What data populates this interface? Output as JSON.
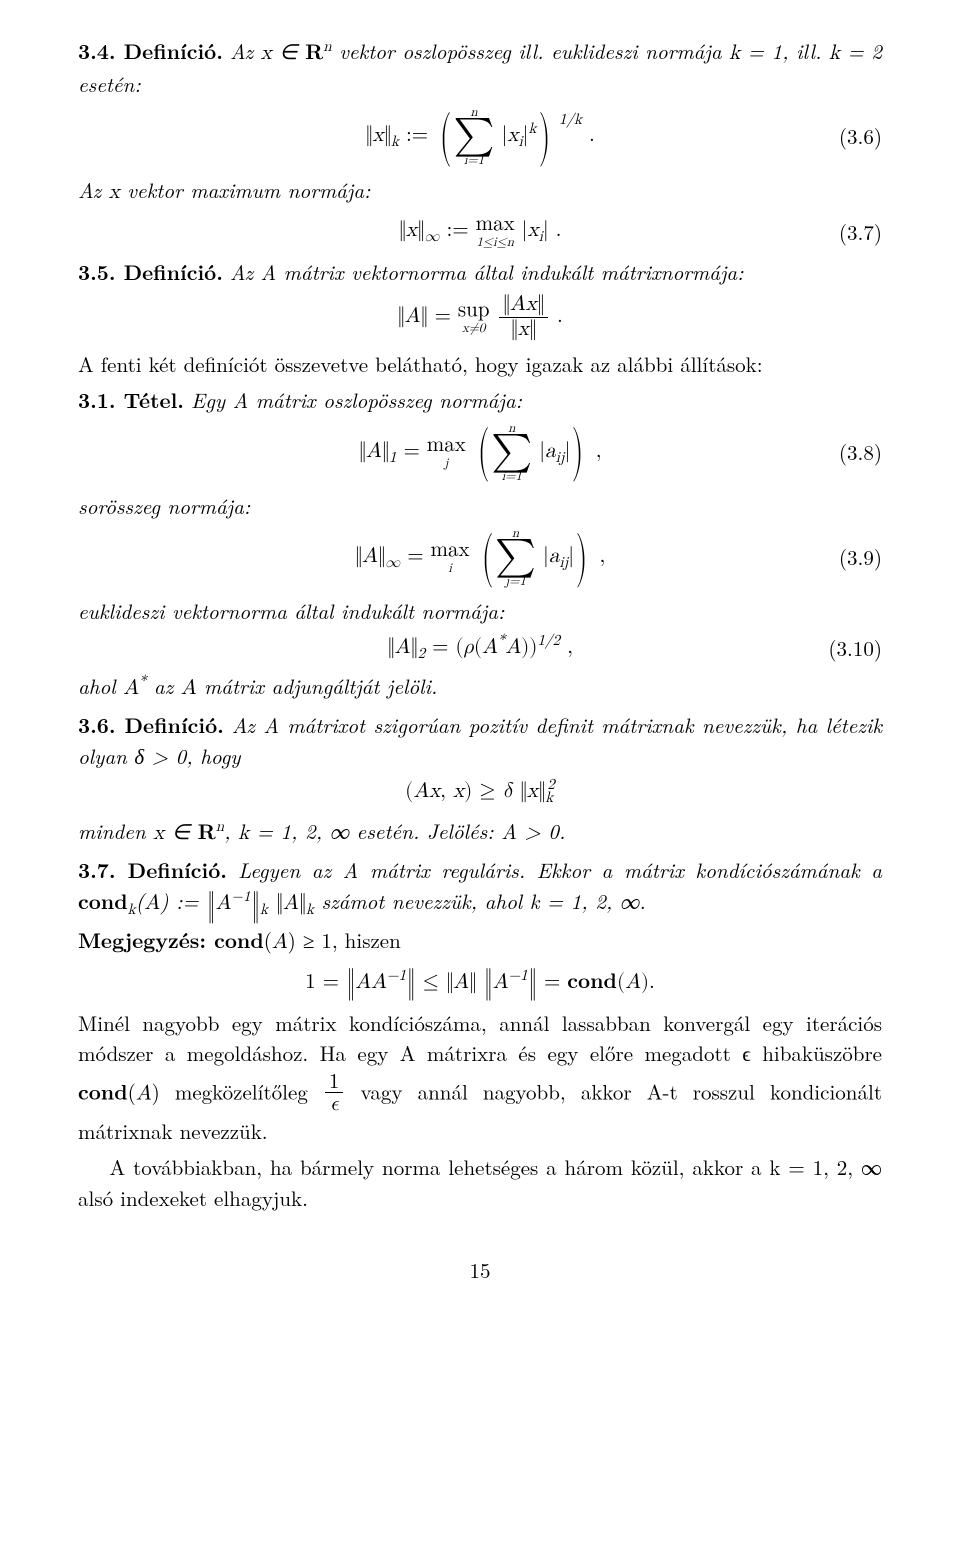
{
  "def34": {
    "heading": "3.4. Definíció.",
    "text_a": " Az ",
    "text_b": " vektor oszlopösszeg ill. euklideszi normája ",
    "text_c": ", ill. ",
    "text_d": " esetén:"
  },
  "eq36_num": "(3.6)",
  "maxnorm_line": "Az x vektor maximum normája:",
  "eq37_num": "(3.7)",
  "def35": {
    "heading": "3.5. Definíció.",
    "text": " Az A mátrix vektornorma által indukált mátrixnormája:"
  },
  "after_def35": "A fenti két definíciót összevetve belátható, hogy igazak az alábbi állítások:",
  "thm31": {
    "heading": "3.1. Tétel.",
    "text": " Egy A mátrix oszlopösszeg normája:"
  },
  "eq38_num": "(3.8)",
  "sorosszeg": "sorösszeg normája:",
  "eq39_num": "(3.9)",
  "euk_line": "euklideszi vektornorma által indukált normája:",
  "eq310_num": "(3.10)",
  "ahol_line": "ahol A* az A mátrix adjungáltját jelöli.",
  "def36": {
    "heading": "3.6. Definíció.",
    "text": " Az A mátrixot szigorúan pozitív definit mátrixnak nevezzük, ha létezik olyan δ > 0, hogy"
  },
  "minden_line_a": "minden ",
  "minden_line_b": " esetén. Jelölés: A > 0.",
  "def37": {
    "heading": "3.7. Definíció.",
    "text_a": " Legyen az A mátrix reguláris. Ekkor a mátrix kondíciószámának a ",
    "text_b": " számot nevezzük, ahol k = 1, 2, ∞."
  },
  "megj_head": "Megjegyzés: ",
  "megj_tail": " ≥ 1, hiszen",
  "para_minel": "Minél nagyobb egy mátrix kondíciószáma, annál lassabban konvergál egy iterációs módszer a megoldáshoz. Ha egy A mátrixra és egy előre megadott ϵ hibaküszöbre ",
  "para_minel_mid": " megközelítőleg ",
  "para_minel_end": " vagy annál nagyobb, akkor A-t rosszul kondicionált mátrixnak nevezzük.",
  "para_tov": "A továbbiakban, ha bármely norma lehetséges a három közül, akkor a k = 1, 2, ∞ alsó indexeket elhagyjuk.",
  "page_number": "15",
  "cond_word": "cond",
  "cond_A": "(A)"
}
